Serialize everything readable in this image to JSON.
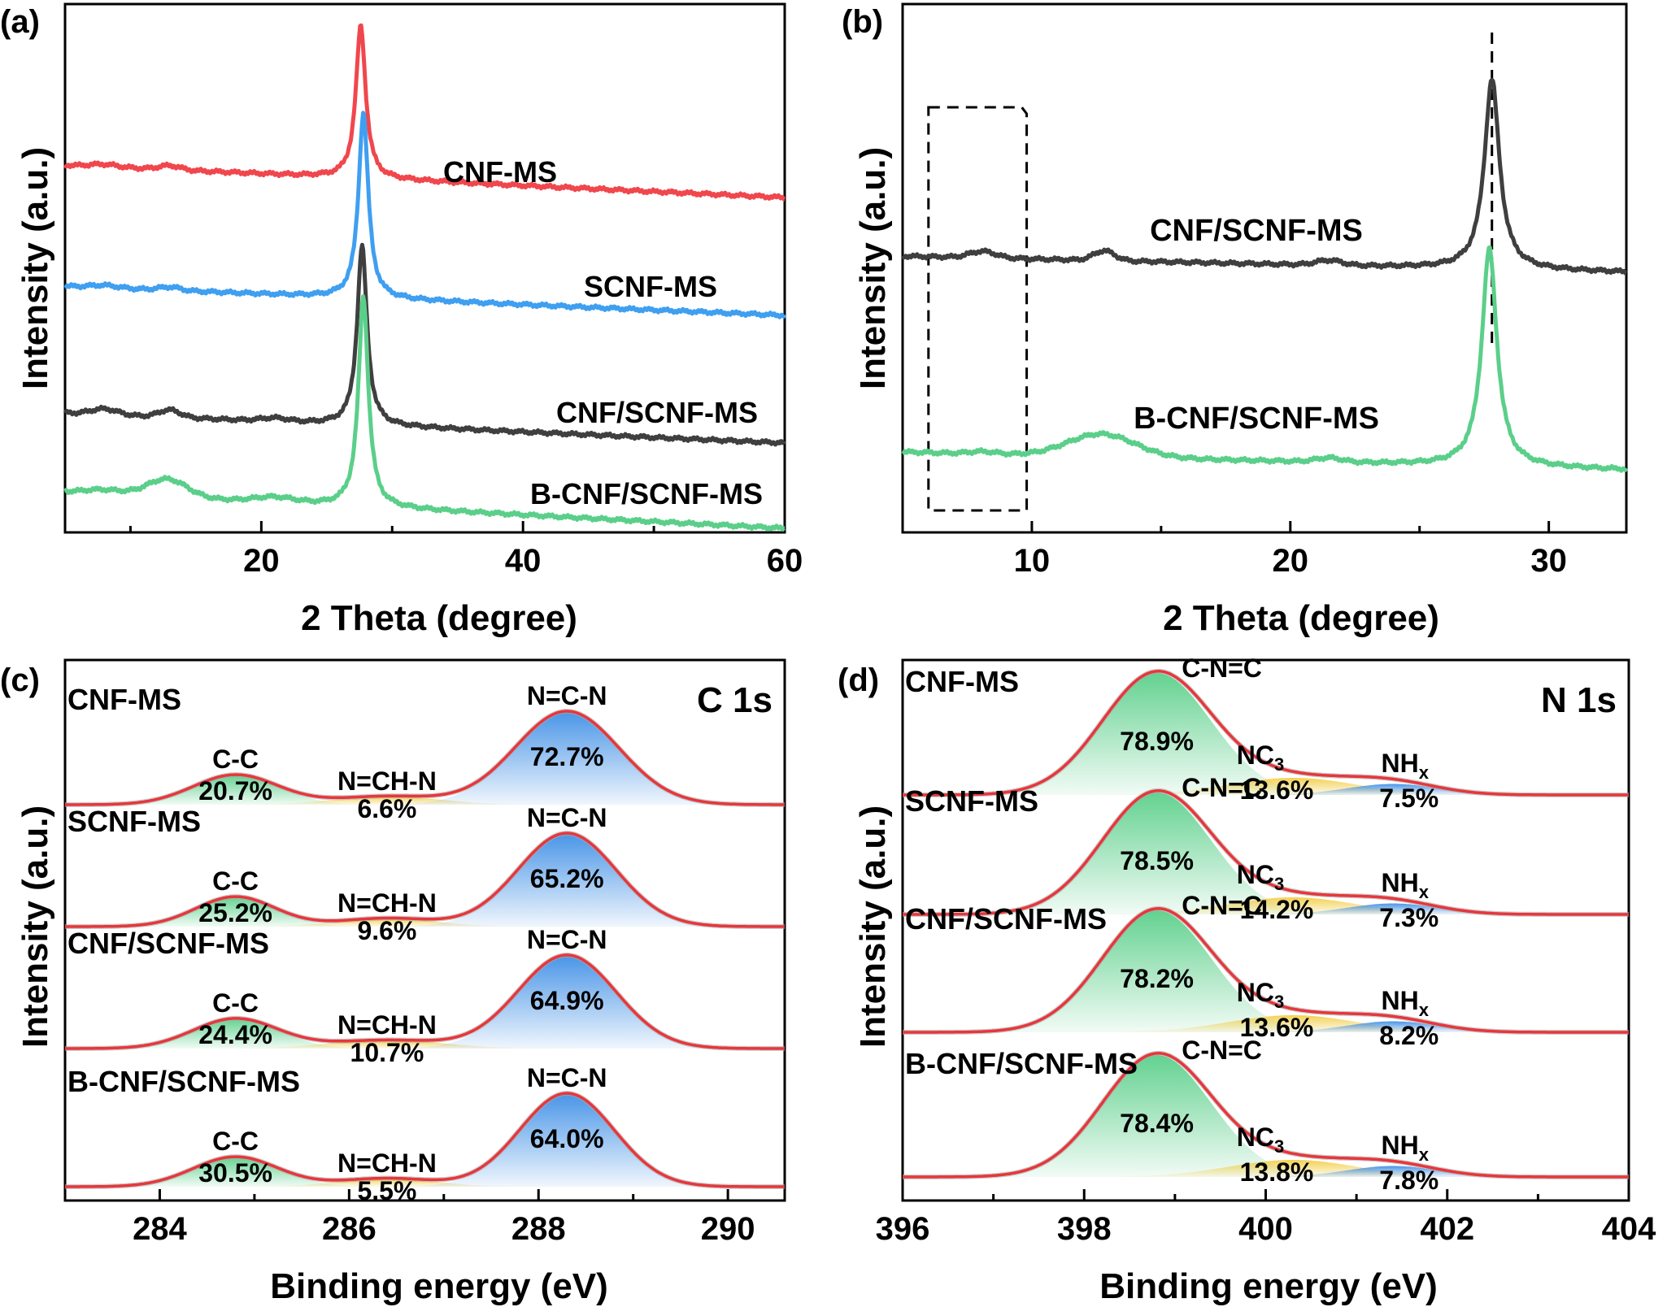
{
  "panels": [
    {
      "id": "a",
      "label": "(a)",
      "type": "line",
      "xlabel": "2 Theta (degree)",
      "ylabel": "Intensity (a.u.)",
      "xlim": [
        5,
        60
      ],
      "xticks": [
        20,
        40,
        60
      ],
      "series": [
        {
          "name": "CNF-MS",
          "color": "#f0474d",
          "peak": 27.6,
          "fwhm": 0.9,
          "amp": 188,
          "base_start": 203,
          "base_end": 243,
          "bumps": [
            [
              8,
              3,
              1
            ],
            [
              13,
              5,
              0.8
            ]
          ]
        },
        {
          "name": "SCNF-MS",
          "color": "#3f9ff0",
          "peak": 27.8,
          "fwhm": 0.9,
          "amp": 228,
          "base_start": 352,
          "base_end": 388,
          "bumps": [
            [
              8,
              3,
              1
            ],
            [
              13,
              4,
              0.8
            ]
          ]
        },
        {
          "name": "CNF/SCNF-MS",
          "color": "#3f3f3f",
          "peak": 27.7,
          "fwhm": 0.9,
          "amp": 221,
          "base_start": 508,
          "base_end": 545,
          "bumps": [
            [
              8,
              7,
              1
            ],
            [
              13,
              9,
              0.8
            ],
            [
              21,
              4,
              1
            ]
          ]
        },
        {
          "name": "B-CNF/SCNF-MS",
          "color": "#5bcf8a",
          "peak": 27.8,
          "fwhm": 0.9,
          "amp": 259,
          "base_start": 605,
          "base_end": 650,
          "bumps": [
            [
              8,
              5,
              1.5
            ],
            [
              12.8,
              22,
              1.5
            ],
            [
              21,
              6,
              1.5
            ]
          ]
        }
      ]
    },
    {
      "id": "b",
      "label": "(b)",
      "type": "line",
      "xlabel": "2 Theta (degree)",
      "ylabel": "Intensity (a.u.)",
      "xlim": [
        5,
        33
      ],
      "xticks": [
        10,
        20,
        30
      ],
      "series": [
        {
          "name": "CNF/SCNF-MS",
          "color": "#3f3f3f",
          "peak": 27.8,
          "fwhm": 0.7,
          "amp": 234,
          "base_start": 315,
          "base_end": 335,
          "bumps": [
            [
              8.1,
              8,
              0.5
            ],
            [
              12.8,
              12,
              0.4
            ],
            [
              21.5,
              6,
              0.5
            ]
          ]
        },
        {
          "name": "B-CNF/SCNF-MS",
          "color": "#5bcf8a",
          "peak": 27.7,
          "fwhm": 0.7,
          "amp": 268,
          "base_start": 556,
          "base_end": 578,
          "bumps": [
            [
              8.1,
              3,
              0.5
            ],
            [
              12.7,
              28,
              1.3
            ],
            [
              21.5,
              5,
              0.5
            ]
          ]
        }
      ],
      "vline_x": 27.8,
      "box_x": [
        6,
        9.8
      ]
    },
    {
      "id": "c",
      "label": "(c)",
      "type": "area",
      "element": "C 1s",
      "xlabel": "Binding energy (eV)",
      "ylabel": "Intensity (a.u.)",
      "xlim": [
        283.0,
        290.6
      ],
      "xticks": [
        284,
        286,
        288,
        290
      ],
      "peak_names": [
        "C-C",
        "N=CH-N",
        "N=C-N"
      ],
      "components_color": [
        "#5bcf8a",
        "#f2cf4a",
        "#3f8fe6"
      ],
      "series": [
        {
          "name": "CNF-MS",
          "centers": [
            284.8,
            286.4,
            288.3
          ],
          "sigmas": [
            0.45,
            0.55,
            0.55
          ],
          "percents": [
            "20.7%",
            "6.6%",
            "72.7%"
          ]
        },
        {
          "name": "SCNF-MS",
          "centers": [
            284.8,
            286.4,
            288.3
          ],
          "sigmas": [
            0.42,
            0.5,
            0.52
          ],
          "percents": [
            "25.2%",
            "9.6%",
            "65.2%"
          ]
        },
        {
          "name": "CNF/SCNF-MS",
          "centers": [
            284.8,
            286.4,
            288.3
          ],
          "sigmas": [
            0.45,
            0.6,
            0.52
          ],
          "percents": [
            "24.4%",
            "10.7%",
            "64.9%"
          ]
        },
        {
          "name": "B-CNF/SCNF-MS",
          "centers": [
            284.8,
            286.4,
            288.3
          ],
          "sigmas": [
            0.45,
            0.5,
            0.5
          ],
          "percents": [
            "30.5%",
            "5.5%",
            "64.0%"
          ]
        }
      ]
    },
    {
      "id": "d",
      "label": "(d)",
      "type": "area",
      "element": "N 1s",
      "xlabel": "Binding energy (eV)",
      "ylabel": "Intensity (a.u.)",
      "xlim": [
        396,
        404
      ],
      "xticks": [
        396,
        398,
        400,
        402,
        404
      ],
      "peak_names": [
        "C-N=C",
        "NC3",
        "NHx"
      ],
      "components_color": [
        "#5bcf8a",
        "#f2cf4a",
        "#3f8fe6"
      ],
      "series": [
        {
          "name": "CNF-MS",
          "centers": [
            398.8,
            400.3,
            401.4
          ],
          "sigmas": [
            0.6,
            0.7,
            0.5
          ],
          "percents": [
            "78.9%",
            "13.6%",
            "7.5%"
          ]
        },
        {
          "name": "SCNF-MS",
          "centers": [
            398.8,
            400.3,
            401.4
          ],
          "sigmas": [
            0.6,
            0.7,
            0.5
          ],
          "percents": [
            "78.5%",
            "14.2%",
            "7.3%"
          ]
        },
        {
          "name": "CNF/SCNF-MS",
          "centers": [
            398.8,
            400.3,
            401.4
          ],
          "sigmas": [
            0.6,
            0.7,
            0.5
          ],
          "percents": [
            "78.2%",
            "13.6%",
            "8.2%"
          ]
        },
        {
          "name": "B-CNF/SCNF-MS",
          "centers": [
            398.8,
            400.3,
            401.4
          ],
          "sigmas": [
            0.6,
            0.7,
            0.5
          ],
          "percents": [
            "78.4%",
            "13.8%",
            "7.8%"
          ]
        }
      ]
    }
  ],
  "colors": {
    "envelope": "#e8363b",
    "axis": "#000000"
  }
}
